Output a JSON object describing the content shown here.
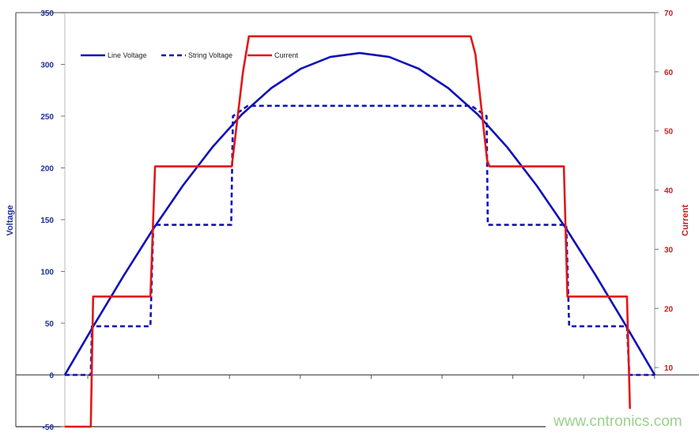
{
  "chart_data": {
    "type": "line",
    "title": "",
    "xlabel": "",
    "ylabel": "Voltage",
    "y2label": "Current",
    "ylim": [
      -50,
      350
    ],
    "y2lim": [
      0,
      70
    ],
    "yticks": [
      -50,
      0,
      50,
      100,
      150,
      200,
      250,
      300,
      350
    ],
    "y2ticks": [
      10,
      20,
      30,
      40,
      50,
      60,
      70
    ],
    "xlim": [
      0,
      100
    ],
    "grid": false,
    "legend_position": "top-left",
    "colors": {
      "voltage": "#1010b8",
      "current": "#e01818",
      "left_ticks": "#1a2f9a",
      "right_ticks": "#c0201c"
    },
    "series": [
      {
        "name": "Line Voltage",
        "axis": "left",
        "style": "solid",
        "color": "#1010b8",
        "points": [
          [
            0,
            0
          ],
          [
            5,
            48.7
          ],
          [
            10,
            96.1
          ],
          [
            15,
            141.2
          ],
          [
            20,
            182.8
          ],
          [
            25,
            219.9
          ],
          [
            30,
            251.6
          ],
          [
            35,
            277.1
          ],
          [
            40,
            295.8
          ],
          [
            45,
            307.2
          ],
          [
            50,
            311
          ],
          [
            55,
            307.2
          ],
          [
            60,
            295.8
          ],
          [
            65,
            277.1
          ],
          [
            70,
            251.6
          ],
          [
            75,
            219.9
          ],
          [
            80,
            182.8
          ],
          [
            85,
            141.2
          ],
          [
            90,
            96.1
          ],
          [
            95,
            48.7
          ],
          [
            100,
            0
          ]
        ]
      },
      {
        "name": "String Voltage",
        "axis": "left",
        "style": "dashed",
        "color": "#1010b8",
        "points": [
          [
            0,
            0
          ],
          [
            4.4,
            0
          ],
          [
            4.6,
            47
          ],
          [
            14.5,
            47
          ],
          [
            15.0,
            145
          ],
          [
            28.2,
            145
          ],
          [
            28.5,
            250
          ],
          [
            31,
            260
          ],
          [
            68.9,
            260
          ],
          [
            71.5,
            250
          ],
          [
            71.7,
            145
          ],
          [
            85.0,
            145
          ],
          [
            85.5,
            47
          ],
          [
            95.3,
            47
          ],
          [
            95.7,
            0
          ],
          [
            100,
            0
          ]
        ]
      },
      {
        "name": "Current",
        "axis": "right",
        "style": "solid",
        "color": "#e01818",
        "points": [
          [
            0,
            0
          ],
          [
            4.4,
            0
          ],
          [
            4.8,
            22
          ],
          [
            14.5,
            22
          ],
          [
            15.3,
            44
          ],
          [
            28.3,
            44
          ],
          [
            30.2,
            60
          ],
          [
            31.2,
            66
          ],
          [
            68.8,
            66
          ],
          [
            69.6,
            63
          ],
          [
            71.6,
            45
          ],
          [
            72,
            44
          ],
          [
            84.6,
            44
          ],
          [
            85.2,
            22
          ],
          [
            95.3,
            22
          ],
          [
            95.8,
            3
          ]
        ]
      }
    ]
  },
  "watermark": "www.cntronics.com"
}
